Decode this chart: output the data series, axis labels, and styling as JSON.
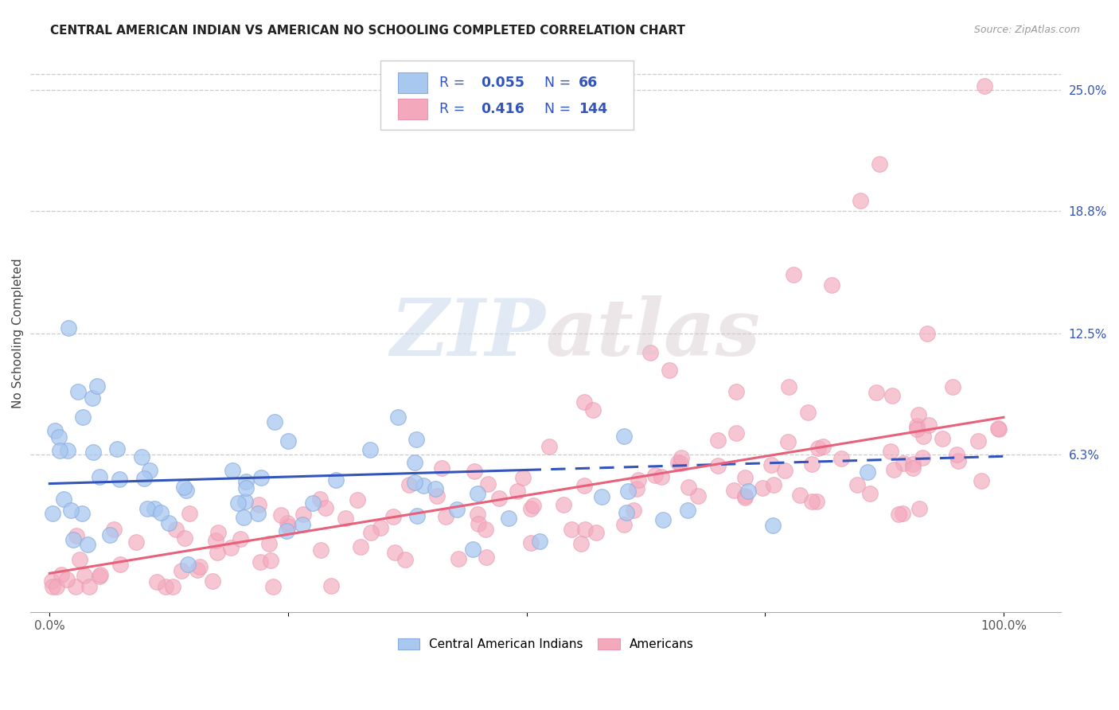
{
  "title": "CENTRAL AMERICAN INDIAN VS AMERICAN NO SCHOOLING COMPLETED CORRELATION CHART",
  "source": "Source: ZipAtlas.com",
  "ylabel": "No Schooling Completed",
  "ytick_labels": [
    "25.0%",
    "18.8%",
    "12.5%",
    "6.3%"
  ],
  "ytick_values": [
    0.25,
    0.188,
    0.125,
    0.063
  ],
  "ylim": [
    -0.018,
    0.268
  ],
  "xlim": [
    -0.02,
    1.06
  ],
  "watermark": "ZIPAtlas",
  "background_color": "#ffffff",
  "grid_color": "#cccccc",
  "blue_color": "#a8c8f0",
  "pink_color": "#f4a8bc",
  "blue_line_color": "#3355bb",
  "pink_line_color": "#e8607a",
  "title_fontsize": 11,
  "axis_label_fontsize": 11,
  "tick_fontsize": 11,
  "legend_text_color": "#3355bb",
  "R_blue": "0.055",
  "N_blue": "66",
  "R_pink": "0.416",
  "N_pink": "144"
}
